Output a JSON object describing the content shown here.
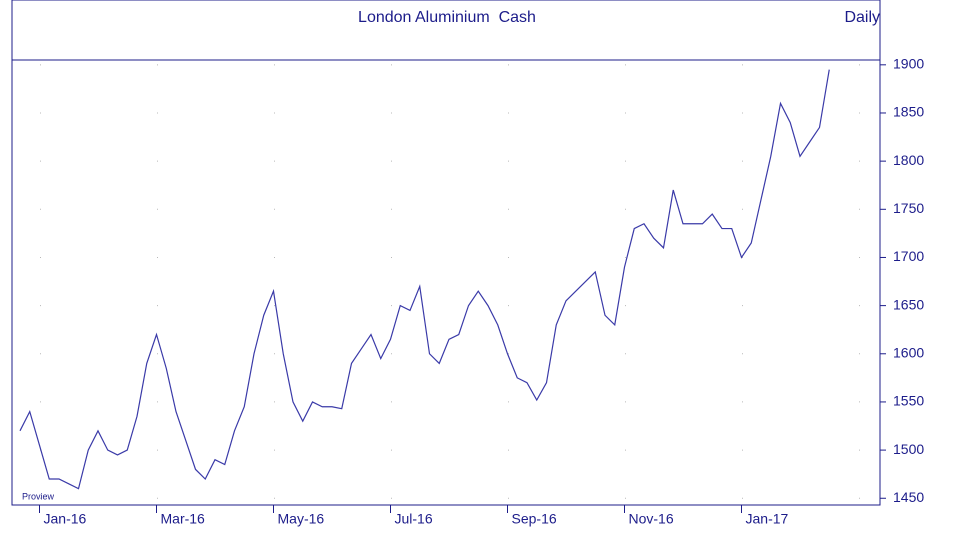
{
  "chart_data": {
    "type": "line",
    "title": "London Aluminium  Cash",
    "subtitle": "Daily",
    "annotation": "Proview",
    "categories": [
      null,
      null,
      "Jan-16",
      null,
      null,
      null,
      null,
      null,
      null,
      null,
      null,
      null,
      null,
      null,
      "Mar-16",
      null,
      null,
      null,
      null,
      null,
      null,
      null,
      null,
      null,
      null,
      null,
      "May-16",
      null,
      null,
      null,
      null,
      null,
      null,
      null,
      null,
      null,
      null,
      null,
      "Jul-16",
      null,
      null,
      null,
      null,
      null,
      null,
      null,
      null,
      null,
      null,
      null,
      "Sep-16",
      null,
      null,
      null,
      null,
      null,
      null,
      null,
      null,
      null,
      null,
      null,
      "Nov-16",
      null,
      null,
      null,
      null,
      null,
      null,
      null,
      null,
      null,
      null,
      null,
      "Jan-17",
      null,
      null,
      null,
      null,
      null,
      null,
      null,
      null,
      null
    ],
    "series": [
      {
        "name": "London Aluminium Cash",
        "color": "#3a3aa8",
        "values": [
          1520,
          1540,
          1505,
          1470,
          1470,
          1465,
          1460,
          1500,
          1520,
          1500,
          1495,
          1500,
          1535,
          1590,
          1620,
          1585,
          1540,
          1510,
          1480,
          1470,
          1490,
          1485,
          1520,
          1545,
          1600,
          1640,
          1665,
          1600,
          1550,
          1530,
          1550,
          1545,
          1545,
          1543,
          1590,
          1605,
          1620,
          1595,
          1615,
          1650,
          1645,
          1670,
          1600,
          1590,
          1615,
          1620,
          1650,
          1665,
          1650,
          1630,
          1600,
          1575,
          1570,
          1552,
          1570,
          1630,
          1655,
          1665,
          1675,
          1685,
          1640,
          1630,
          1690,
          1730,
          1735,
          1720,
          1710,
          1770,
          1735,
          1735,
          1735,
          1745,
          1730,
          1730,
          1700,
          1715,
          1760,
          1805,
          1860,
          1840,
          1805,
          1820,
          1835,
          1895
        ]
      }
    ],
    "ylim": [
      1443,
      1905
    ],
    "yticks": [
      1450,
      1500,
      1550,
      1600,
      1650,
      1700,
      1750,
      1800,
      1850,
      1900
    ],
    "grid": true
  }
}
